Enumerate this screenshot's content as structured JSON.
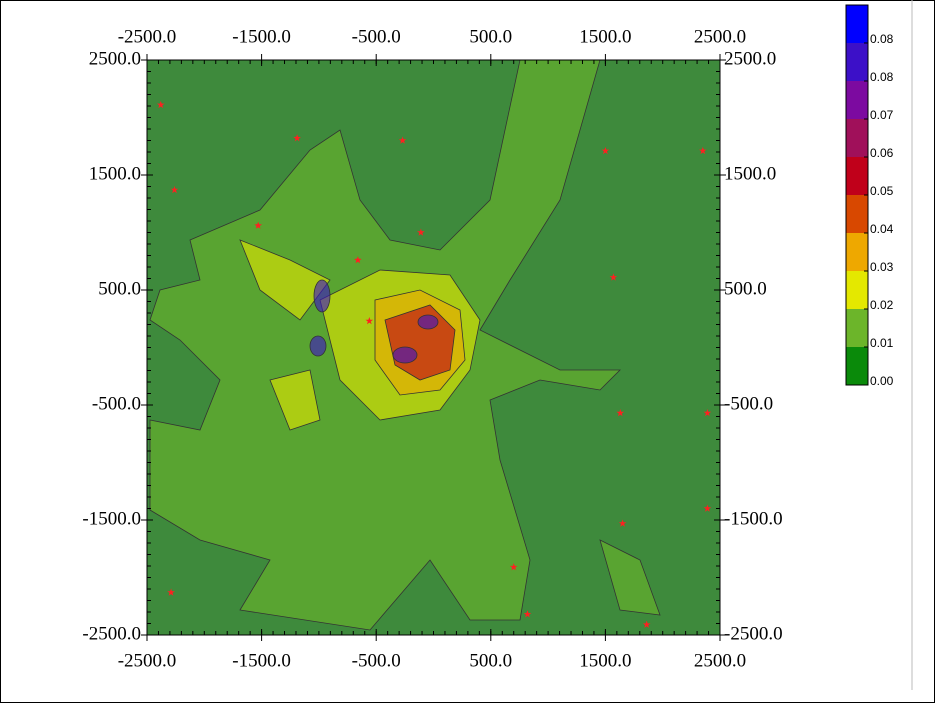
{
  "chart_data": {
    "type": "contour",
    "xlim": [
      -2500,
      2500
    ],
    "ylim": [
      -2500,
      2500
    ],
    "xticks": [
      {
        "value": -2500,
        "label": "-2500.0"
      },
      {
        "value": -1500,
        "label": "-1500.0"
      },
      {
        "value": -500,
        "label": "-500.0"
      },
      {
        "value": 500,
        "label": "500.0"
      },
      {
        "value": 1500,
        "label": "1500.0"
      },
      {
        "value": 2500,
        "label": "2500.0"
      }
    ],
    "yticks": [
      {
        "value": -2500,
        "label": "-2500.0"
      },
      {
        "value": -1500,
        "label": "-1500.0"
      },
      {
        "value": -500,
        "label": "-500.0"
      },
      {
        "value": 500,
        "label": "500.0"
      },
      {
        "value": 1500,
        "label": "1500.0"
      },
      {
        "value": 2500,
        "label": "2500.0"
      }
    ],
    "colorbar": {
      "clim": [
        0,
        0.094
      ],
      "levels": [
        {
          "value": 0,
          "label": "0.00"
        },
        {
          "value": 0.0094,
          "label": "0.01"
        },
        {
          "value": 0.0188,
          "label": "0.02"
        },
        {
          "value": 0.0282,
          "label": "0.03"
        },
        {
          "value": 0.0376,
          "label": "0.04"
        },
        {
          "value": 0.047,
          "label": "0.05"
        },
        {
          "value": 0.0564,
          "label": "0.06"
        },
        {
          "value": 0.0658,
          "label": "0.07"
        },
        {
          "value": 0.0752,
          "label": "0.08"
        },
        {
          "value": 0.0846,
          "label": "0.08"
        }
      ],
      "colors": [
        "#0a8a0a",
        "#6cb52a",
        "#e4e800",
        "#eea800",
        "#d84800",
        "#c0001a",
        "#a0105a",
        "#7c0aa0",
        "#3c10c8",
        "#0000ff"
      ]
    },
    "points": {
      "color": "#ff2020",
      "x": [
        -2380,
        -1190,
        -270,
        1500,
        2350,
        -2260,
        -1530,
        -110,
        -660,
        1570,
        -560,
        1630,
        2390,
        1650,
        2390,
        700,
        820,
        -2290,
        1860
      ],
      "y": [
        2110,
        1820,
        1800,
        1710,
        1710,
        1370,
        1060,
        1000,
        760,
        610,
        230,
        -570,
        -570,
        -1530,
        -1400,
        -1910,
        -2320,
        -2130,
        -2410
      ]
    }
  }
}
